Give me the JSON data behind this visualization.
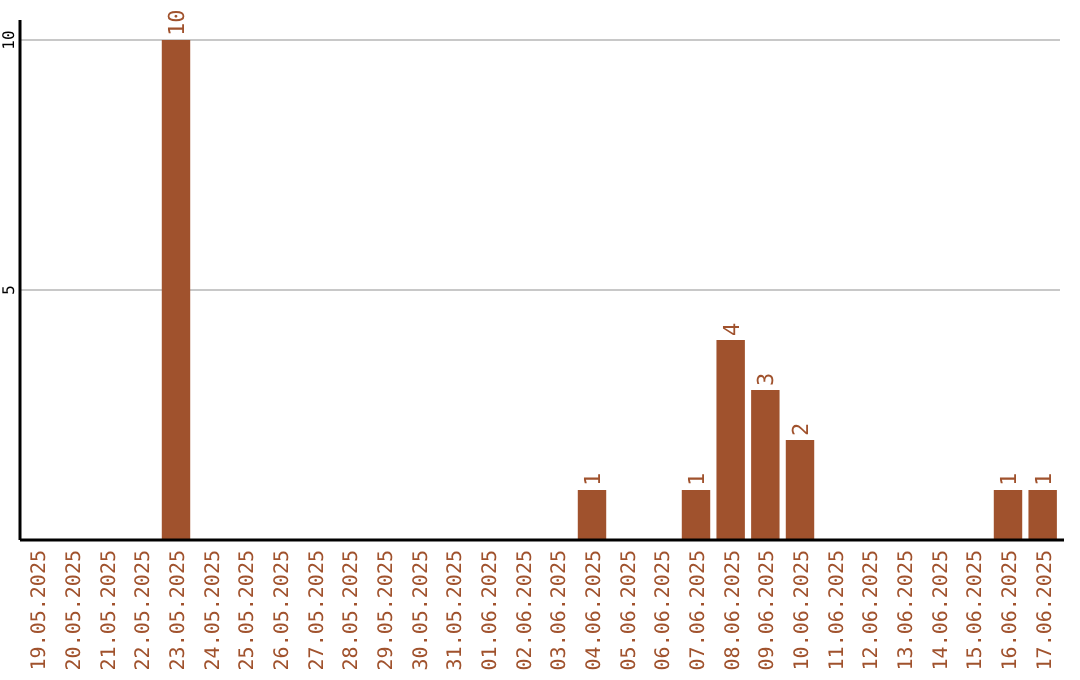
{
  "chart_data": {
    "type": "bar",
    "categories": [
      "19.05.2025",
      "20.05.2025",
      "21.05.2025",
      "22.05.2025",
      "23.05.2025",
      "24.05.2025",
      "25.05.2025",
      "26.05.2025",
      "27.05.2025",
      "28.05.2025",
      "29.05.2025",
      "30.05.2025",
      "31.05.2025",
      "01.06.2025",
      "02.06.2025",
      "03.06.2025",
      "04.06.2025",
      "05.06.2025",
      "06.06.2025",
      "07.06.2025",
      "08.06.2025",
      "09.06.2025",
      "10.06.2025",
      "11.06.2025",
      "12.06.2025",
      "13.06.2025",
      "14.06.2025",
      "15.06.2025",
      "16.06.2025",
      "17.06.2025"
    ],
    "values": [
      0,
      0,
      0,
      0,
      10,
      0,
      0,
      0,
      0,
      0,
      0,
      0,
      0,
      0,
      0,
      0,
      1,
      0,
      0,
      1,
      4,
      3,
      2,
      0,
      0,
      0,
      0,
      0,
      1,
      1
    ],
    "value_labels": [
      null,
      null,
      null,
      null,
      "10",
      null,
      null,
      null,
      null,
      null,
      null,
      null,
      null,
      null,
      null,
      null,
      "1",
      null,
      null,
      "1",
      "4",
      "3",
      "2",
      null,
      null,
      null,
      null,
      null,
      "1",
      "1"
    ],
    "color": "#a0522d",
    "ylim": [
      0,
      10.4
    ],
    "yticks": [
      5,
      10
    ],
    "grid": "y"
  }
}
